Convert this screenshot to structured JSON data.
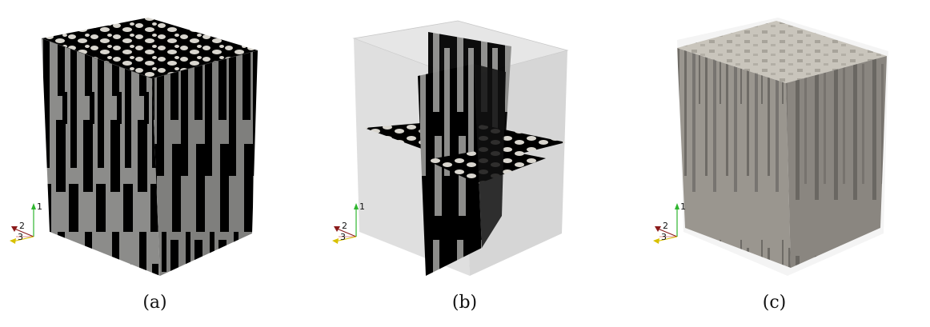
{
  "colors": {
    "solid": "#8c8c8a",
    "solid_top": "#d9d6cf",
    "pore": "#000000",
    "ghost": "#d8d8d8",
    "axis_1": "#2fb52f",
    "axis_2": "#8b1a1a",
    "axis_3": "#d8c000"
  },
  "panels": [
    {
      "caption": "(a)",
      "axes": {
        "label_1": "1",
        "label_2": "2",
        "label_3": "3"
      }
    },
    {
      "caption": "(b)",
      "axes": {
        "label_1": "1",
        "label_2": "2",
        "label_3": "3"
      }
    },
    {
      "caption": "(c)",
      "axes": {
        "label_1": "1",
        "label_2": "2",
        "label_3": "3"
      }
    }
  ]
}
